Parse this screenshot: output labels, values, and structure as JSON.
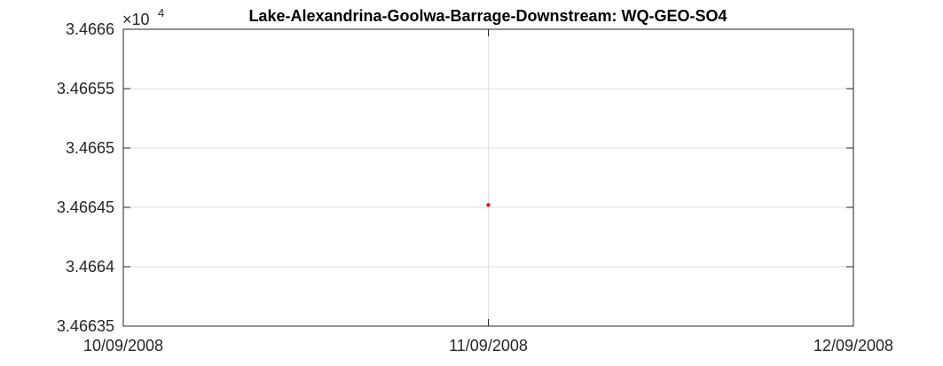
{
  "chart_data": {
    "type": "scatter",
    "title": "Lake-Alexandrina-Goolwa-Barrage-Downstream: WQ-GEO-SO4",
    "xlabel": "",
    "ylabel": "",
    "y_exponent_base": "×10",
    "y_exponent_power": "4",
    "x_tick_labels": [
      "10/09/2008",
      "11/09/2008",
      "12/09/2008"
    ],
    "x_range_days": [
      0,
      2
    ],
    "y_tick_labels": [
      "3.46635",
      "3.4664",
      "3.46645",
      "3.4665",
      "3.46655",
      "3.4666"
    ],
    "ylim": [
      3.46635,
      3.4666
    ],
    "grid": true,
    "marker_color": "#e8141e",
    "points": [
      {
        "x": "11/09/2008",
        "x_day": 1,
        "y": 3.466452
      }
    ]
  }
}
